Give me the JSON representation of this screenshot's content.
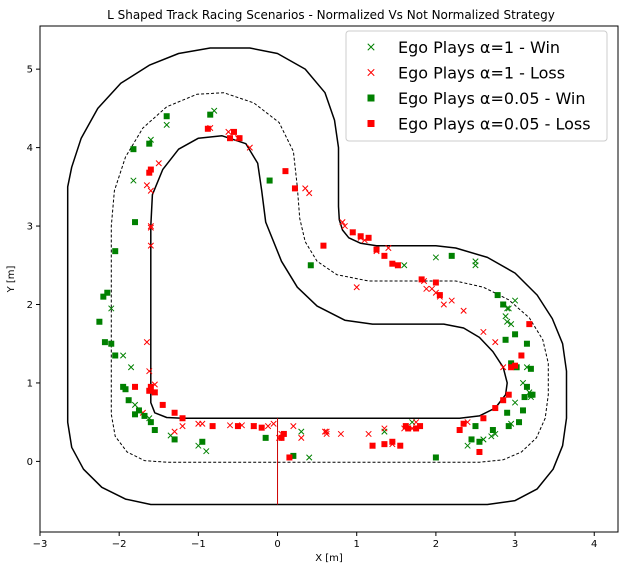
{
  "chart_data": {
    "type": "scatter",
    "title": "L Shaped Track Racing Scenarios - Normalized Vs Not Normalized Strategy",
    "xlabel": "X [m]",
    "ylabel": "Y [m]",
    "xlim": [
      -3,
      4.3
    ],
    "ylim": [
      -0.9,
      5.55
    ],
    "xticks": [
      -3,
      -2,
      -1,
      0,
      1,
      2,
      3,
      4
    ],
    "yticks": [
      0,
      1,
      2,
      3,
      4,
      5
    ],
    "legend_position": "upper-right",
    "track": {
      "outer_boundary": {
        "color": "#000000",
        "style": "solid",
        "points": [
          [
            0,
            -0.55
          ],
          [
            2.65,
            -0.55
          ],
          [
            3.0,
            -0.5
          ],
          [
            3.28,
            -0.35
          ],
          [
            3.48,
            -0.1
          ],
          [
            3.6,
            0.2
          ],
          [
            3.65,
            0.55
          ],
          [
            3.65,
            1.15
          ],
          [
            3.6,
            1.5
          ],
          [
            3.47,
            1.82
          ],
          [
            3.28,
            2.12
          ],
          [
            3.0,
            2.4
          ],
          [
            2.65,
            2.6
          ],
          [
            2.25,
            2.72
          ],
          [
            2.0,
            2.75
          ],
          [
            1.25,
            2.75
          ],
          [
            1.05,
            2.78
          ],
          [
            0.9,
            2.85
          ],
          [
            0.82,
            2.95
          ],
          [
            0.78,
            3.08
          ],
          [
            0.77,
            3.25
          ],
          [
            0.77,
            4.0
          ],
          [
            0.72,
            4.35
          ],
          [
            0.6,
            4.7
          ],
          [
            0.35,
            5.0
          ],
          [
            0.0,
            5.2
          ],
          [
            -0.35,
            5.27
          ],
          [
            -0.85,
            5.27
          ],
          [
            -1.25,
            5.2
          ],
          [
            -1.62,
            5.05
          ],
          [
            -1.98,
            4.82
          ],
          [
            -2.27,
            4.5
          ],
          [
            -2.48,
            4.12
          ],
          [
            -2.6,
            3.75
          ],
          [
            -2.65,
            3.5
          ],
          [
            -2.65,
            0.5
          ],
          [
            -2.6,
            0.18
          ],
          [
            -2.45,
            -0.1
          ],
          [
            -2.22,
            -0.33
          ],
          [
            -1.92,
            -0.48
          ],
          [
            -1.6,
            -0.55
          ],
          [
            0,
            -0.55
          ]
        ]
      },
      "center_line": {
        "color": "#000000",
        "style": "dashed",
        "points": [
          [
            0,
            -0.01
          ],
          [
            2.55,
            -0.01
          ],
          [
            2.85,
            0.02
          ],
          [
            3.08,
            0.12
          ],
          [
            3.27,
            0.3
          ],
          [
            3.38,
            0.55
          ],
          [
            3.42,
            0.85
          ],
          [
            3.42,
            1.25
          ],
          [
            3.35,
            1.55
          ],
          [
            3.18,
            1.83
          ],
          [
            2.92,
            2.06
          ],
          [
            2.6,
            2.22
          ],
          [
            2.25,
            2.3
          ],
          [
            1.15,
            2.3
          ],
          [
            0.75,
            2.38
          ],
          [
            0.5,
            2.55
          ],
          [
            0.35,
            2.8
          ],
          [
            0.28,
            3.1
          ],
          [
            0.25,
            3.5
          ],
          [
            0.2,
            3.95
          ],
          [
            0.02,
            4.32
          ],
          [
            -0.3,
            4.57
          ],
          [
            -0.68,
            4.7
          ],
          [
            -1.02,
            4.68
          ],
          [
            -1.4,
            4.52
          ],
          [
            -1.7,
            4.25
          ],
          [
            -1.92,
            3.88
          ],
          [
            -2.06,
            3.45
          ],
          [
            -2.1,
            3.0
          ],
          [
            -2.1,
            0.6
          ],
          [
            -2.05,
            0.32
          ],
          [
            -1.9,
            0.12
          ],
          [
            -1.68,
            0.01
          ],
          [
            -1.4,
            -0.01
          ],
          [
            0,
            -0.01
          ]
        ]
      },
      "inner_boundary": {
        "color": "#000000",
        "style": "solid",
        "points": [
          [
            0,
            0.55
          ],
          [
            2.3,
            0.55
          ],
          [
            2.55,
            0.58
          ],
          [
            2.75,
            0.68
          ],
          [
            2.88,
            0.85
          ],
          [
            2.9,
            1.0
          ],
          [
            2.85,
            1.2
          ],
          [
            2.72,
            1.4
          ],
          [
            2.55,
            1.58
          ],
          [
            2.35,
            1.7
          ],
          [
            2.1,
            1.75
          ],
          [
            1.2,
            1.75
          ],
          [
            0.85,
            1.8
          ],
          [
            0.5,
            1.98
          ],
          [
            0.25,
            2.22
          ],
          [
            0.05,
            2.55
          ],
          [
            -0.15,
            3.05
          ],
          [
            -0.2,
            3.45
          ],
          [
            -0.25,
            3.8
          ],
          [
            -0.4,
            4.05
          ],
          [
            -0.7,
            4.15
          ],
          [
            -1.0,
            4.12
          ],
          [
            -1.25,
            3.98
          ],
          [
            -1.45,
            3.72
          ],
          [
            -1.58,
            3.4
          ],
          [
            -1.6,
            3.0
          ],
          [
            -1.6,
            0.75
          ],
          [
            -1.55,
            0.62
          ],
          [
            -1.4,
            0.56
          ],
          [
            -1.2,
            0.55
          ],
          [
            0,
            0.55
          ]
        ]
      },
      "start_line": {
        "color": "#cc0000",
        "points": [
          [
            0,
            -0.55
          ],
          [
            0,
            0.55
          ]
        ]
      }
    },
    "series": [
      {
        "name": "Ego Plays α=1 - Win",
        "marker": "x",
        "color": "#008000",
        "x": [
          -0.8,
          -1.4,
          -1.6,
          -1.82,
          -2.1,
          -1.95,
          -1.85,
          -1.8,
          -1.62,
          -1.35,
          -1.0,
          -0.9,
          0.4,
          0.3,
          1.35,
          1.6,
          2.0,
          2.5,
          2.6,
          2.4,
          2.6,
          2.75,
          2.85,
          2.9,
          3.0,
          3.15,
          3.1,
          3.18,
          3.2,
          3.0,
          2.95,
          2.7,
          1.7,
          2.5,
          2.88,
          2.9,
          2.95,
          2.92
        ],
        "y": [
          4.47,
          4.29,
          4.1,
          3.58,
          1.95,
          1.35,
          1.2,
          0.72,
          0.55,
          0.33,
          0.2,
          0.13,
          0.05,
          0.38,
          0.38,
          2.5,
          2.6,
          2.55,
          0.28,
          0.2,
          0.28,
          0.35,
          2.0,
          1.95,
          2.05,
          1.2,
          1.0,
          0.88,
          0.82,
          0.75,
          0.48,
          0.32,
          0.5,
          2.5,
          1.85,
          1.78,
          1.75,
          1.95
        ]
      },
      {
        "name": "Ego Plays α=1  - Loss",
        "marker": "x",
        "color": "#ff0000",
        "x": [
          -0.85,
          -0.62,
          -0.5,
          -0.35,
          -0.05,
          0.3,
          1.2,
          1.15,
          1.35,
          1.6,
          1.7,
          1.75,
          0.02,
          0.05,
          0.2,
          0.6,
          0.8,
          1.0,
          1.1,
          1.25,
          1.4,
          1.52,
          1.85,
          1.95,
          2.05,
          2.35,
          2.6,
          2.75,
          2.85,
          2.4,
          -1.6,
          -1.6,
          -1.6,
          -1.65,
          -1.62,
          -1.55,
          -1.65,
          -1.6,
          -1.5,
          -1.3,
          -1.2,
          -1.0,
          -0.6,
          -0.45,
          -0.3,
          -0.12,
          0.62,
          0.62,
          0.82,
          0.85,
          0.95,
          1.05,
          1.45,
          1.88,
          2.0,
          2.1,
          2.2,
          1.7,
          0.4,
          0.35,
          -0.95,
          -1.55,
          -1.7
        ],
        "y": [
          4.25,
          4.2,
          4.12,
          4.0,
          0.48,
          0.3,
          0.2,
          0.35,
          0.42,
          0.42,
          0.42,
          0.5,
          0.3,
          0.35,
          0.45,
          0.38,
          0.35,
          2.22,
          2.82,
          2.68,
          2.72,
          2.5,
          2.3,
          2.2,
          2.1,
          1.92,
          1.65,
          1.52,
          1.2,
          0.5,
          3.0,
          2.98,
          2.75,
          1.52,
          1.15,
          0.98,
          3.52,
          3.45,
          3.8,
          0.38,
          0.45,
          0.48,
          0.46,
          0.46,
          0.45,
          0.45,
          0.38,
          0.35,
          3.05,
          3.0,
          2.92,
          2.85,
          0.22,
          2.2,
          2.15,
          2.0,
          2.05,
          0.42,
          3.42,
          3.48,
          0.48,
          0.88,
          0.62
        ]
      },
      {
        "name": "Ego Plays α=0.05 - Win",
        "marker": "s",
        "color": "#008000",
        "x": [
          -1.4,
          -1.62,
          -1.82,
          -0.85,
          -1.8,
          -2.05,
          -2.15,
          -2.2,
          -2.18,
          -2.25,
          -2.1,
          -2.05,
          -1.95,
          -1.92,
          -1.88,
          -1.75,
          -1.8,
          -1.68,
          -1.6,
          -1.55,
          -1.3,
          -0.95,
          -0.1,
          0.2,
          -0.15,
          0.42,
          2.0,
          2.2,
          2.45,
          2.55,
          2.78,
          2.85,
          2.9,
          2.92,
          3.05,
          3.15,
          3.1,
          3.2,
          3.12,
          3.22,
          3.2,
          3.0,
          3.15,
          3.02,
          2.95,
          2.88,
          2.72,
          2.5
        ],
        "y": [
          4.4,
          4.05,
          3.98,
          4.42,
          3.05,
          2.68,
          2.15,
          2.1,
          1.52,
          1.78,
          1.5,
          1.35,
          0.95,
          0.92,
          0.78,
          0.65,
          0.6,
          0.58,
          0.5,
          0.4,
          0.28,
          0.25,
          3.58,
          0.07,
          0.3,
          2.5,
          0.05,
          2.62,
          0.28,
          0.25,
          2.12,
          2.0,
          0.62,
          0.45,
          0.5,
          1.5,
          0.65,
          0.85,
          0.82,
          0.85,
          1.18,
          1.62,
          0.95,
          1.2,
          1.25,
          1.55,
          0.4,
          0.45
        ]
      },
      {
        "name": "Ego Plays α=0.05  - Loss",
        "marker": "s",
        "color": "#ff0000",
        "x": [
          -0.88,
          -0.55,
          -0.48,
          -1.6,
          -1.62,
          -1.6,
          -1.55,
          -1.45,
          -1.3,
          -1.2,
          -0.82,
          -0.5,
          -0.3,
          -0.2,
          0.05,
          0.22,
          0.58,
          0.95,
          1.05,
          1.15,
          1.25,
          1.35,
          1.45,
          1.52,
          1.65,
          1.75,
          1.82,
          2.0,
          2.05,
          2.3,
          2.35,
          2.55,
          2.6,
          2.75,
          2.85,
          2.92,
          2.95,
          3.0,
          3.08,
          3.18,
          1.35,
          1.45,
          1.2,
          1.55,
          1.62,
          1.8,
          -0.6,
          -1.62,
          0.1,
          0.15,
          -1.8,
          0.08
        ],
        "y": [
          4.24,
          4.2,
          4.12,
          3.72,
          3.68,
          0.95,
          0.88,
          0.72,
          0.62,
          0.55,
          0.45,
          0.45,
          0.45,
          0.43,
          0.3,
          3.48,
          2.75,
          2.92,
          2.87,
          2.85,
          2.7,
          2.62,
          2.52,
          2.5,
          0.42,
          0.42,
          2.32,
          2.28,
          2.12,
          0.4,
          0.48,
          0.12,
          0.55,
          0.68,
          0.78,
          0.85,
          1.2,
          1.22,
          1.35,
          1.75,
          0.22,
          0.25,
          0.2,
          0.2,
          0.45,
          0.45,
          4.12,
          0.9,
          3.7,
          0.05,
          0.95,
          0.35
        ]
      }
    ]
  }
}
